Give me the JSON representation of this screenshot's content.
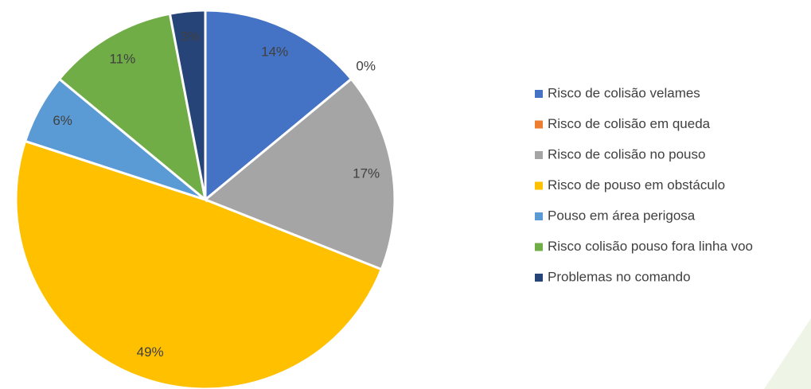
{
  "chart_data": {
    "type": "pie",
    "categories": [
      "Risco de colisão velames",
      "Risco de colisão em queda",
      "Risco de colisão no pouso",
      "Risco de pouso em obstáculo",
      "Pouso em área perigosa",
      "Risco colisão pouso fora linha voo",
      "Problemas no comando"
    ],
    "values": [
      14,
      0,
      17,
      49,
      6,
      11,
      3
    ],
    "value_labels": [
      "14%",
      "0%",
      "17%",
      "49%",
      "6%",
      "11%",
      "3%"
    ],
    "colors": [
      "#4472c4",
      "#ed7d31",
      "#a5a5a5",
      "#ffc000",
      "#5b9bd5",
      "#70ad47",
      "#264478"
    ],
    "legend": "right"
  }
}
